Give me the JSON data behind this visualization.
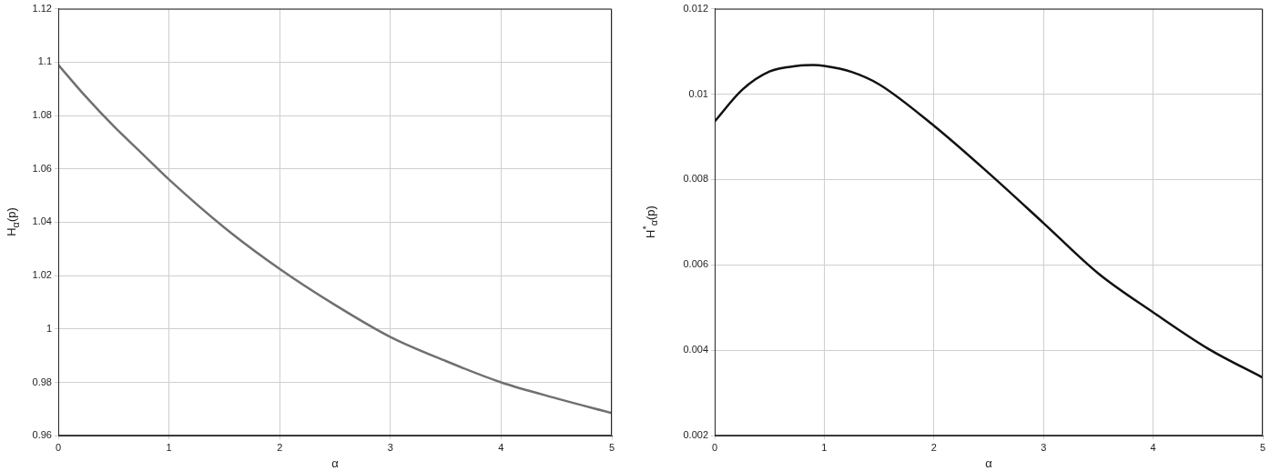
{
  "chart_data": [
    {
      "type": "line",
      "xlabel": "α",
      "ylabel": "H$_{α}$(p)",
      "x": [
        0,
        0.25,
        0.5,
        0.75,
        1,
        1.5,
        2,
        2.5,
        3,
        3.5,
        4,
        4.5,
        5
      ],
      "series": [
        {
          "color": "#707070",
          "values": [
            1.099,
            1.087,
            1.076,
            1.066,
            1.056,
            1.038,
            1.0225,
            1.009,
            0.997,
            0.988,
            0.98,
            0.974,
            0.9685
          ]
        }
      ],
      "xlim": [
        0,
        5
      ],
      "xticks": [
        0,
        1,
        2,
        3,
        4,
        5
      ],
      "ylim": [
        0.96,
        1.12
      ],
      "yticks": [
        0.96,
        0.98,
        1,
        1.02,
        1.04,
        1.06,
        1.08,
        1.1,
        1.12
      ],
      "grid": true,
      "legend": false
    },
    {
      "type": "line",
      "xlabel": "α",
      "ylabel": "H$^{*}$$_{α}$(p)",
      "x": [
        0,
        0.25,
        0.5,
        0.75,
        0.9,
        1,
        1.25,
        1.5,
        2,
        2.5,
        3,
        3.5,
        4,
        4.5,
        5
      ],
      "series": [
        {
          "color": "#111111",
          "values": [
            0.00936,
            0.0101,
            0.01053,
            0.01066,
            0.01068,
            0.01066,
            0.01052,
            0.01023,
            0.00926,
            0.00815,
            0.00698,
            0.0058,
            0.00489,
            0.00404,
            0.00336
          ]
        }
      ],
      "xlim": [
        0,
        5
      ],
      "xticks": [
        0,
        1,
        2,
        3,
        4,
        5
      ],
      "ylim": [
        0.002,
        0.012
      ],
      "yticks": [
        0.002,
        0.004,
        0.006,
        0.008,
        0.01,
        0.012
      ],
      "grid": true,
      "legend": false
    }
  ]
}
